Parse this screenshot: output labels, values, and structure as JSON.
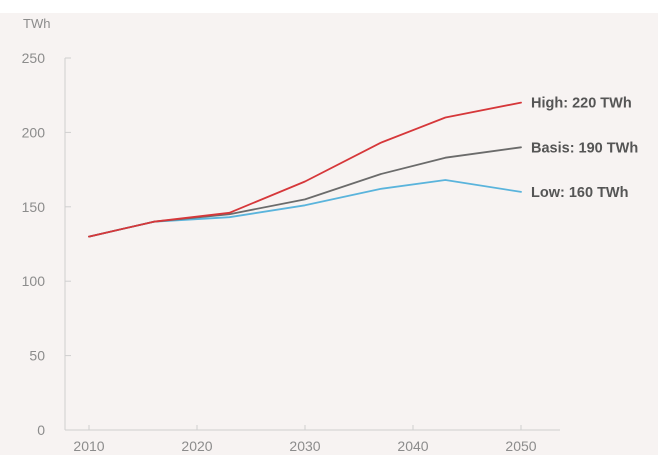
{
  "chart_data": {
    "type": "line",
    "y_unit": "TWh",
    "x": [
      2010,
      2016,
      2023,
      2030,
      2037,
      2043,
      2050
    ],
    "x_ticks": [
      2010,
      2020,
      2030,
      2040,
      2050
    ],
    "y_ticks": [
      0,
      50,
      100,
      150,
      200,
      250
    ],
    "xlim": [
      2008,
      2050
    ],
    "ylim": [
      0,
      250
    ],
    "grid": false,
    "legend": "none",
    "background": "#f7f3f2",
    "series": [
      {
        "values": [
          130,
          140,
          146,
          167,
          193,
          210,
          220
        ],
        "color": "#d6373a",
        "end_label": "High: 220 TWh"
      },
      {
        "values": [
          130,
          140,
          145,
          155,
          172,
          183,
          190
        ],
        "color": "#6b6b6b",
        "end_label": "Basis: 190 TWh"
      },
      {
        "values": [
          130,
          140,
          143,
          151,
          162,
          168,
          160
        ],
        "color": "#5ab4dc",
        "end_label": "Low: 160 TWh"
      }
    ]
  }
}
